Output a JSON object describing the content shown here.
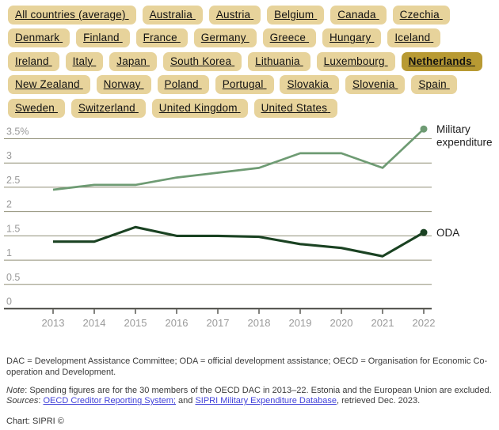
{
  "colors": {
    "pill_bg": "#e7d39b",
    "pill_selected_bg": "#b89a33",
    "link_color": "#4343d9",
    "gridline": "#908f77",
    "axis": "#3e3e38",
    "tick_label": "#9a9a9a",
    "legend_text": "#1d1d1d",
    "military_line": "#6e9b73",
    "oda_line": "#1a4222"
  },
  "countries": {
    "items": [
      {
        "label": "All countries (average)",
        "selected": false
      },
      {
        "label": "Australia",
        "selected": false
      },
      {
        "label": "Austria",
        "selected": false
      },
      {
        "label": "Belgium",
        "selected": false
      },
      {
        "label": "Canada",
        "selected": false
      },
      {
        "label": "Czechia",
        "selected": false
      },
      {
        "label": "Denmark",
        "selected": false
      },
      {
        "label": "Finland",
        "selected": false
      },
      {
        "label": "France",
        "selected": false
      },
      {
        "label": "Germany",
        "selected": false
      },
      {
        "label": "Greece",
        "selected": false
      },
      {
        "label": "Hungary",
        "selected": false
      },
      {
        "label": "Iceland",
        "selected": false
      },
      {
        "label": "Ireland",
        "selected": false
      },
      {
        "label": "Italy",
        "selected": false
      },
      {
        "label": "Japan",
        "selected": false
      },
      {
        "label": "South Korea",
        "selected": false
      },
      {
        "label": "Lithuania",
        "selected": false
      },
      {
        "label": "Luxembourg",
        "selected": false
      },
      {
        "label": "Netherlands",
        "selected": true
      },
      {
        "label": "New Zealand",
        "selected": false
      },
      {
        "label": "Norway",
        "selected": false
      },
      {
        "label": "Poland",
        "selected": false
      },
      {
        "label": "Portugal",
        "selected": false
      },
      {
        "label": "Slovakia",
        "selected": false
      },
      {
        "label": "Slovenia",
        "selected": false
      },
      {
        "label": "Spain",
        "selected": false
      },
      {
        "label": "Sweden",
        "selected": false
      },
      {
        "label": "Switzerland",
        "selected": false
      },
      {
        "label": "United Kingdom",
        "selected": false
      },
      {
        "label": "United States",
        "selected": false
      }
    ]
  },
  "chart_data": {
    "type": "line",
    "x": [
      2013,
      2014,
      2015,
      2016,
      2017,
      2018,
      2019,
      2020,
      2021,
      2022
    ],
    "series": [
      {
        "name": "Military expenditure",
        "values": [
          2.45,
          2.55,
          2.55,
          2.7,
          2.8,
          2.9,
          3.2,
          3.2,
          2.9,
          3.7
        ]
      },
      {
        "name": "ODA",
        "values": [
          1.38,
          1.38,
          1.68,
          1.5,
          1.5,
          1.48,
          1.33,
          1.25,
          1.08,
          1.57
        ]
      }
    ],
    "ylim": [
      0,
      3.7
    ],
    "yticks": {
      "values": [
        3.5,
        3,
        2.5,
        2,
        1.5,
        1,
        0.5,
        0
      ],
      "labels": [
        "3.5%",
        "3",
        "2.5",
        "2",
        "1.5",
        "1",
        "0.5",
        "0"
      ]
    },
    "grid": "horizontal gridlines on, labels above lines",
    "legend_position": "right of line endpoints",
    "legend": [
      "Military expenditure",
      "ODA"
    ]
  },
  "footer": {
    "definitions": "DAC = Development Assistance Committee; ODA = official development assistance; OECD = Organisation for Economic Co-operation and Development.",
    "note_label": "Note",
    "note_text": ": Spending figures are for the 30 members of the OECD DAC in 2013–22. Estonia and the European Union are excluded.",
    "sources_label": "Sources",
    "sources_sep": ": ",
    "source_link_1": "OECD Creditor Reporting System;",
    "sources_mid": " and ",
    "source_link_2": "SIPRI Military Expenditure Database",
    "sources_suffix": ", retrieved Dec. 2023.",
    "credit": "Chart: SIPRI ©"
  }
}
